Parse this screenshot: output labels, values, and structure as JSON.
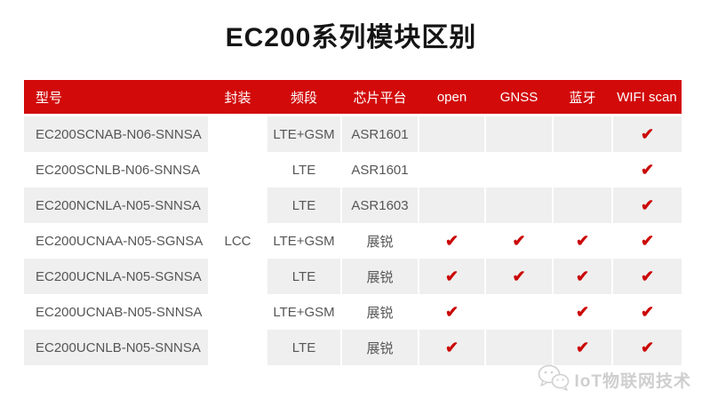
{
  "title": "EC200系列模块区别",
  "colors": {
    "header_red": "#d20a0a",
    "check_red": "#cb0707",
    "stripe_gray": "#efefef",
    "body_text": "#565656",
    "watermark_gray": "#cfcfcf"
  },
  "check_glyph": "✔",
  "table": {
    "columns": [
      {
        "label": "型号",
        "key": "model"
      },
      {
        "label": "封装",
        "key": "package"
      },
      {
        "label": "频段",
        "key": "band"
      },
      {
        "label": "芯片平台",
        "key": "chip"
      },
      {
        "label": "open",
        "key": "open"
      },
      {
        "label": "GNSS",
        "key": "gnss"
      },
      {
        "label": "蓝牙",
        "key": "bt"
      },
      {
        "label": "WIFI scan",
        "key": "wifi"
      }
    ],
    "package_value": "LCC",
    "rows": [
      {
        "model": "EC200SCNAB-N06-SNNSA",
        "band": "LTE+GSM",
        "chip": "ASR1601",
        "open": false,
        "gnss": false,
        "bt": false,
        "wifi": true
      },
      {
        "model": "EC200SCNLB-N06-SNNSA",
        "band": "LTE",
        "chip": "ASR1601",
        "open": false,
        "gnss": false,
        "bt": false,
        "wifi": true
      },
      {
        "model": "EC200NCNLA-N05-SNNSA",
        "band": "LTE",
        "chip": "ASR1603",
        "open": false,
        "gnss": false,
        "bt": false,
        "wifi": true
      },
      {
        "model": "EC200UCNAA-N05-SGNSA",
        "band": "LTE+GSM",
        "chip": "展锐",
        "open": true,
        "gnss": true,
        "bt": true,
        "wifi": true
      },
      {
        "model": "EC200UCNLA-N05-SGNSA",
        "band": "LTE",
        "chip": "展锐",
        "open": true,
        "gnss": true,
        "bt": true,
        "wifi": true
      },
      {
        "model": "EC200UCNAB-N05-SNNSA",
        "band": "LTE+GSM",
        "chip": "展锐",
        "open": true,
        "gnss": false,
        "bt": true,
        "wifi": true
      },
      {
        "model": "EC200UCNLB-N05-SNNSA",
        "band": "LTE",
        "chip": "展锐",
        "open": true,
        "gnss": false,
        "bt": true,
        "wifi": true
      }
    ]
  },
  "chart_data": {
    "type": "table",
    "title": "EC200系列模块区别",
    "columns": [
      "型号",
      "封装",
      "频段",
      "芯片平台",
      "open",
      "GNSS",
      "蓝牙",
      "WIFI scan"
    ],
    "rows": [
      [
        "EC200SCNAB-N06-SNNSA",
        "LCC",
        "LTE+GSM",
        "ASR1601",
        "",
        "",
        "",
        "✔"
      ],
      [
        "EC200SCNLB-N06-SNNSA",
        "LCC",
        "LTE",
        "ASR1601",
        "",
        "",
        "",
        "✔"
      ],
      [
        "EC200NCNLA-N05-SNNSA",
        "LCC",
        "LTE",
        "ASR1603",
        "",
        "",
        "",
        "✔"
      ],
      [
        "EC200UCNAA-N05-SGNSA",
        "LCC",
        "LTE+GSM",
        "展锐",
        "✔",
        "✔",
        "✔",
        "✔"
      ],
      [
        "EC200UCNLA-N05-SGNSA",
        "LCC",
        "LTE",
        "展锐",
        "✔",
        "✔",
        "✔",
        "✔"
      ],
      [
        "EC200UCNAB-N05-SNNSA",
        "LCC",
        "LTE+GSM",
        "展锐",
        "✔",
        "",
        "✔",
        "✔"
      ],
      [
        "EC200UCNLB-N05-SNNSA",
        "LCC",
        "LTE",
        "展锐",
        "✔",
        "",
        "✔",
        "✔"
      ]
    ]
  },
  "watermark": {
    "text": "IoT物联网技术"
  }
}
